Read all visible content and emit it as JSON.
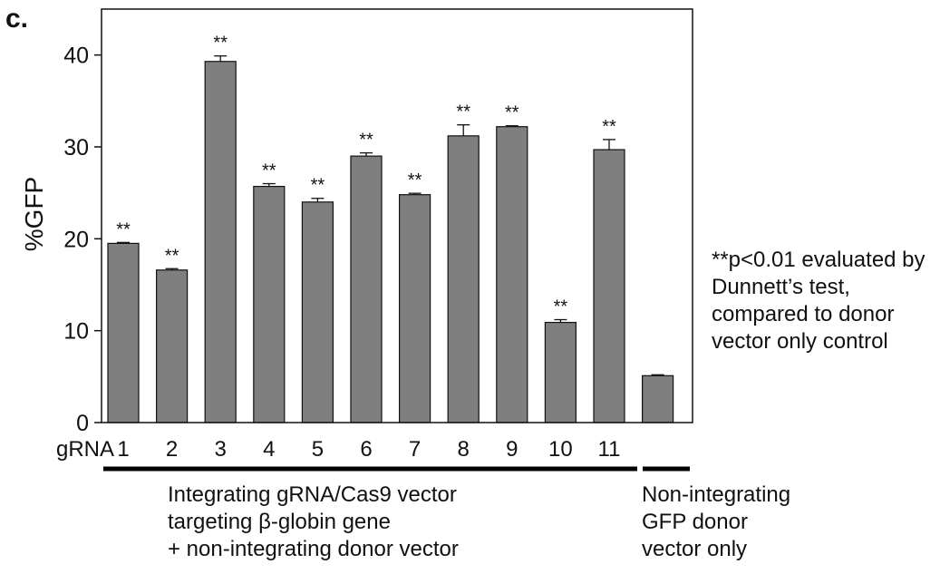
{
  "panel_label": "c.",
  "chart_data": {
    "type": "bar",
    "ylabel": "%GFP",
    "xlabel": "gRNA",
    "ylim": [
      0,
      45
    ],
    "yticks": [
      0,
      10,
      20,
      30,
      40
    ],
    "categories": [
      "1",
      "2",
      "3",
      "4",
      "5",
      "6",
      "7",
      "8",
      "9",
      "10",
      "11",
      ""
    ],
    "values": [
      19.5,
      16.6,
      39.3,
      25.7,
      24.0,
      29.0,
      24.8,
      31.2,
      32.2,
      10.9,
      29.7,
      5.1
    ],
    "errors": [
      0.1,
      0.15,
      0.6,
      0.3,
      0.4,
      0.35,
      0.15,
      1.2,
      0.1,
      0.3,
      1.1,
      0.1
    ],
    "significance": [
      "**",
      "**",
      "**",
      "**",
      "**",
      "**",
      "**",
      "**",
      "**",
      "**",
      "**",
      ""
    ],
    "bar_color": "#7f7f7f",
    "grid": false
  },
  "annotation": {
    "lines": [
      "**p<0.01 evaluated by",
      "Dunnett’s test,",
      "compared to donor",
      "vector only control"
    ]
  },
  "groups": {
    "main": {
      "lines": [
        "Integrating gRNA/Cas9 vector",
        "targeting β-globin gene",
        "+ non-integrating donor vector"
      ]
    },
    "control": {
      "lines": [
        "Non-integrating",
        "GFP donor",
        "vector only"
      ]
    }
  }
}
